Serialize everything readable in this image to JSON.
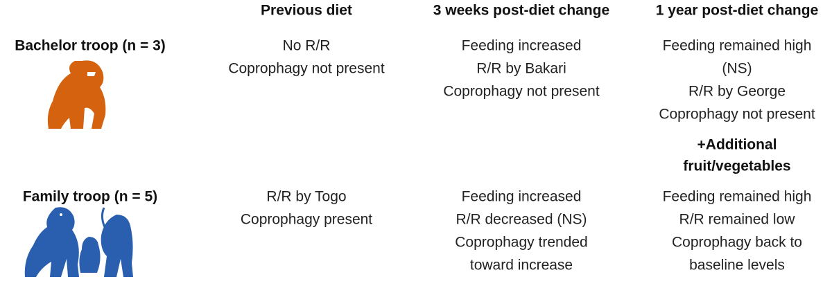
{
  "header": {
    "columns": [
      "Previous diet",
      "3 weeks post-diet change",
      "1 year post-diet change"
    ]
  },
  "rows": [
    {
      "label": "Bachelor troop (n = 3)",
      "cells": [
        [
          "No R/R",
          "Coprophagy not present"
        ],
        [
          "Feeding increased",
          "R/R by Bakari",
          "Coprophagy not present"
        ],
        [
          "Feeding remained high",
          "(NS)",
          "R/R by George",
          "Coprophagy not present"
        ]
      ]
    },
    {
      "label": "Family troop (n = 5)",
      "cells": [
        [
          "R/R by Togo",
          "Coprophagy present"
        ],
        [
          "Feeding increased",
          "R/R decreased (NS)",
          "Coprophagy trended",
          "toward increase"
        ],
        [
          "Feeding remained high",
          "R/R remained low",
          "Coprophagy back to",
          "baseline levels"
        ]
      ]
    }
  ],
  "note": [
    "+Additional",
    "fruit/vegetables"
  ]
}
